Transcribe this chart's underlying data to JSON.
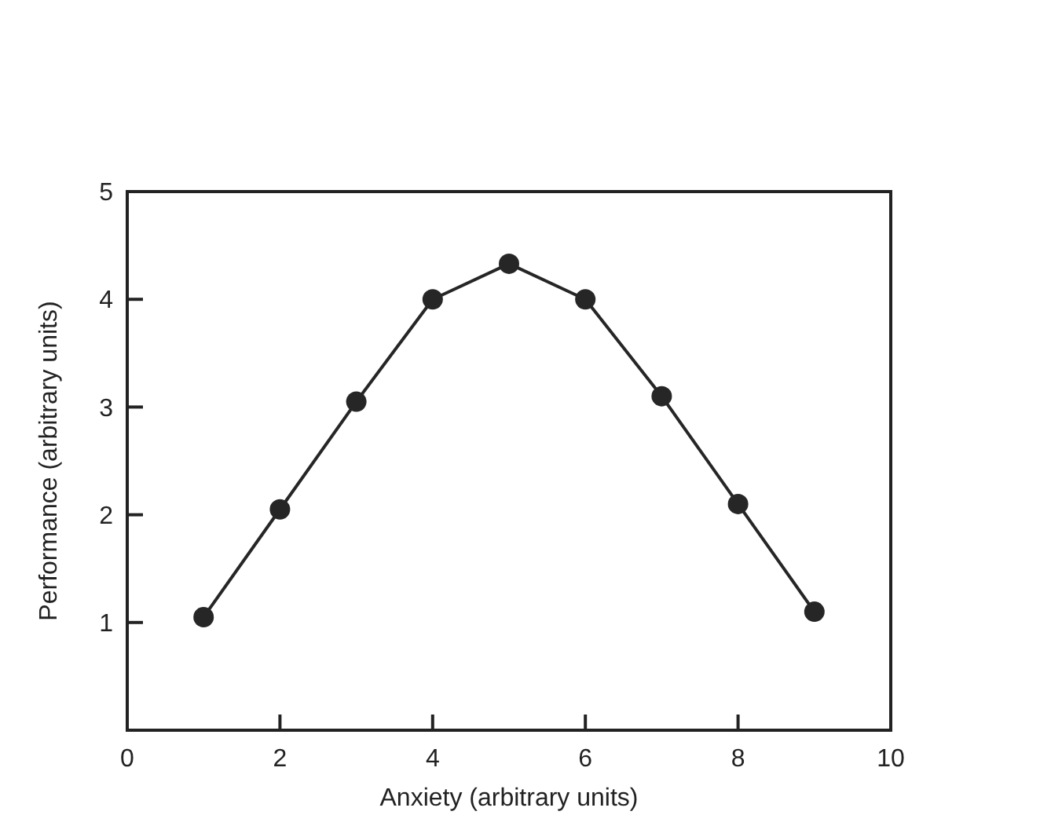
{
  "chart_data": {
    "type": "line",
    "xlabel": "Anxiety (arbitrary units)",
    "ylabel": "Performance (arbitrary units)",
    "x": [
      1,
      2,
      3,
      4,
      5,
      6,
      7,
      8,
      9
    ],
    "values": [
      1.05,
      2.05,
      3.05,
      4.0,
      4.33,
      4.0,
      3.1,
      2.1,
      1.1
    ],
    "color": "#262626",
    "xlim": [
      0,
      10
    ],
    "ylim": [
      0,
      5
    ],
    "xticks": [
      0,
      2,
      4,
      6,
      8,
      10
    ],
    "yticks": [
      1,
      2,
      3,
      4,
      5
    ],
    "marker": "circle",
    "line_style": "solid"
  }
}
